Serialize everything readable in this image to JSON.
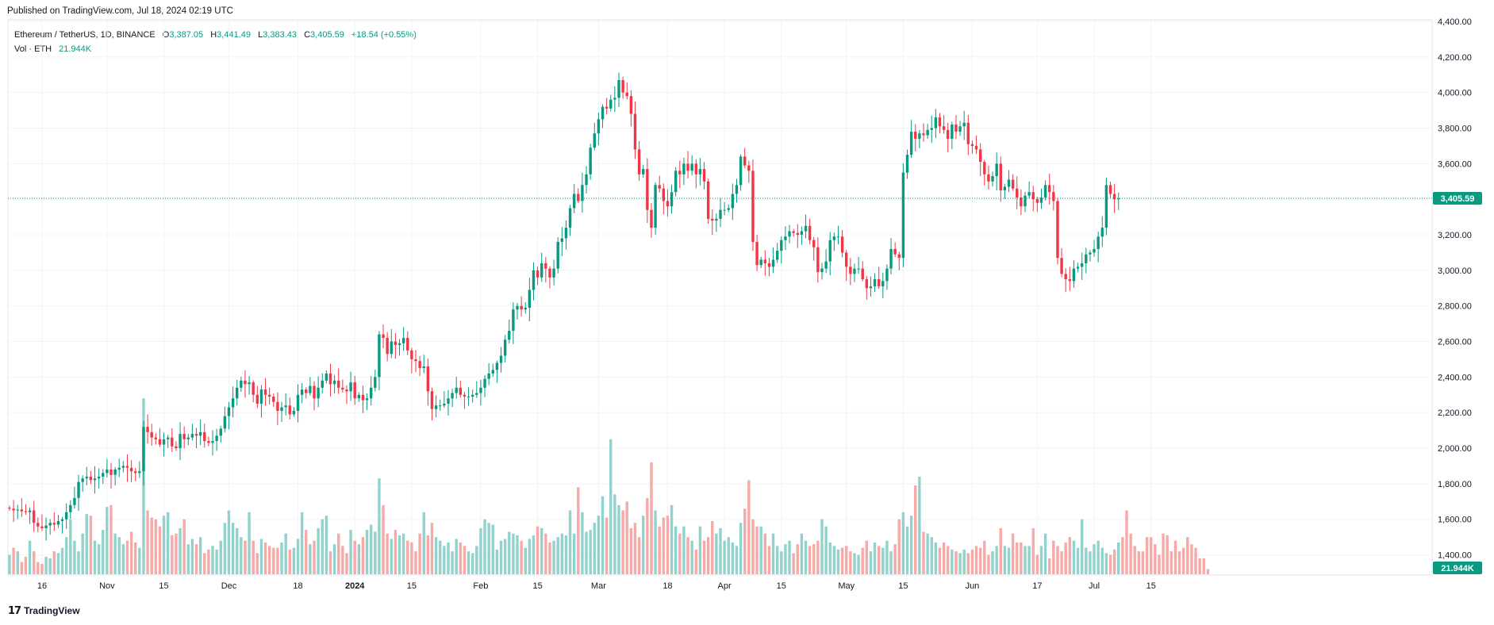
{
  "header": {
    "published": "Published on TradingView.com, Jul 18, 2024 02:19 UTC"
  },
  "legend": {
    "symbol": "Ethereum / TetherUS, 1D, BINANCE",
    "open_label": "O",
    "open": "3,387.05",
    "high_label": "H",
    "high": "3,441.49",
    "low_label": "L",
    "low": "3,383.43",
    "close_label": "C",
    "close": "3,405.59",
    "change": "+18.54 (+0.55%)",
    "vol_label": "Vol · ETH",
    "vol_value": "21.944K"
  },
  "footer": {
    "brand": "TradingView"
  },
  "colors": {
    "up": "#089981",
    "down": "#f23645",
    "up_vol": "#92d2cc",
    "down_vol": "#f7a9a7",
    "grid": "#f0f3fa",
    "price_tag": "#089981"
  },
  "chart_data": {
    "type": "candlestick",
    "title": "Ethereum / TetherUS, 1D, BINANCE",
    "ylim": [
      1300,
      4400
    ],
    "y_ticks": [
      "4,400.00",
      "4,200.00",
      "4,000.00",
      "3,800.00",
      "3,600.00",
      "3,400.00",
      "3,200.00",
      "3,000.00",
      "2,800.00",
      "2,600.00",
      "2,400.00",
      "2,200.00",
      "2,000.00",
      "1,800.00",
      "1,600.00",
      "1,400.00"
    ],
    "y_tick_values": [
      4400,
      4200,
      4000,
      3800,
      3600,
      3400,
      3200,
      3000,
      2800,
      2600,
      2400,
      2200,
      2000,
      1800,
      1600,
      1400
    ],
    "x_ticks": [
      {
        "label": "16",
        "idx": 8
      },
      {
        "label": "Nov",
        "idx": 24
      },
      {
        "label": "15",
        "idx": 38
      },
      {
        "label": "Dec",
        "idx": 54
      },
      {
        "label": "18",
        "idx": 71
      },
      {
        "label": "2024",
        "idx": 85,
        "bold": true
      },
      {
        "label": "15",
        "idx": 99
      },
      {
        "label": "Feb",
        "idx": 116
      },
      {
        "label": "15",
        "idx": 130
      },
      {
        "label": "Mar",
        "idx": 145
      },
      {
        "label": "18",
        "idx": 162
      },
      {
        "label": "Apr",
        "idx": 176
      },
      {
        "label": "15",
        "idx": 190
      },
      {
        "label": "May",
        "idx": 206
      },
      {
        "label": "15",
        "idx": 220
      },
      {
        "label": "Jun",
        "idx": 237
      },
      {
        "label": "17",
        "idx": 253
      },
      {
        "label": "Jul",
        "idx": 267
      },
      {
        "label": "15",
        "idx": 281
      }
    ],
    "last_price": 3405.59,
    "last_price_label": "3,405.59",
    "volume_label": "21.944K",
    "closes": [
      1660,
      1650,
      1655,
      1645,
      1640,
      1650,
      1580,
      1560,
      1550,
      1565,
      1580,
      1570,
      1590,
      1600,
      1640,
      1680,
      1720,
      1810,
      1830,
      1840,
      1820,
      1830,
      1840,
      1860,
      1880,
      1850,
      1880,
      1890,
      1900,
      1890,
      1870,
      1860,
      1870,
      2120,
      2090,
      2060,
      2050,
      2020,
      2050,
      2060,
      2010,
      2000,
      2080,
      2050,
      2060,
      2080,
      2070,
      2090,
      2040,
      2030,
      2040,
      2070,
      2110,
      2180,
      2230,
      2280,
      2340,
      2380,
      2360,
      2370,
      2300,
      2250,
      2330,
      2300,
      2290,
      2260,
      2210,
      2230,
      2240,
      2190,
      2210,
      2300,
      2330,
      2310,
      2350,
      2280,
      2340,
      2380,
      2420,
      2360,
      2380,
      2340,
      2330,
      2320,
      2370,
      2280,
      2300,
      2270,
      2280,
      2340,
      2400,
      2640,
      2620,
      2530,
      2600,
      2580,
      2590,
      2620,
      2550,
      2500,
      2490,
      2450,
      2460,
      2320,
      2220,
      2240,
      2240,
      2250,
      2280,
      2310,
      2340,
      2300,
      2290,
      2290,
      2300,
      2310,
      2340,
      2390,
      2420,
      2440,
      2480,
      2520,
      2610,
      2660,
      2780,
      2800,
      2780,
      2790,
      2890,
      3000,
      2960,
      3040,
      3010,
      2960,
      3010,
      3160,
      3180,
      3240,
      3350,
      3430,
      3390,
      3480,
      3540,
      3690,
      3770,
      3850,
      3920,
      3910,
      3960,
      3970,
      4070,
      4000,
      3980,
      3880,
      3680,
      3540,
      3570,
      3340,
      3240,
      3480,
      3460,
      3390,
      3360,
      3440,
      3560,
      3540,
      3600,
      3560,
      3600,
      3540,
      3570,
      3500,
      3290,
      3280,
      3290,
      3340,
      3340,
      3350,
      3430,
      3480,
      3640,
      3590,
      3560,
      3160,
      3030,
      3060,
      3040,
      3020,
      3060,
      3110,
      3170,
      3190,
      3220,
      3210,
      3200,
      3220,
      3250,
      3170,
      3130,
      2990,
      3010,
      3050,
      3170,
      3190,
      3190,
      3100,
      3020,
      2980,
      3010,
      3010,
      2950,
      2900,
      2910,
      2950,
      2910,
      2940,
      3010,
      3120,
      3090,
      3070,
      3550,
      3650,
      3780,
      3740,
      3770,
      3760,
      3790,
      3800,
      3860,
      3810,
      3790,
      3740,
      3820,
      3780,
      3810,
      3830,
      3710,
      3700,
      3680,
      3610,
      3540,
      3500,
      3530,
      3600,
      3450,
      3470,
      3510,
      3460,
      3410,
      3360,
      3420,
      3440,
      3400,
      3380,
      3410,
      3480,
      3440,
      3390,
      3070,
      2980,
      2950,
      2940,
      3010,
      3020,
      3040,
      3090,
      3100,
      3120,
      3190,
      3240,
      3480,
      3430,
      3400,
      3405
    ],
    "volumes": [
      1400,
      1440,
      1420,
      1360,
      1390,
      1480,
      1420,
      1360,
      1350,
      1390,
      1380,
      1420,
      1410,
      1440,
      1500,
      1600,
      1480,
      1420,
      1520,
      1630,
      1620,
      1480,
      1460,
      1540,
      1670,
      1680,
      1520,
      1500,
      1460,
      1480,
      1530,
      1470,
      1440,
      2280,
      1650,
      1610,
      1600,
      1560,
      1620,
      1640,
      1510,
      1520,
      1550,
      1600,
      1460,
      1490,
      1460,
      1500,
      1410,
      1430,
      1450,
      1430,
      1480,
      1580,
      1650,
      1580,
      1550,
      1500,
      1480,
      1640,
      1480,
      1410,
      1490,
      1470,
      1450,
      1440,
      1440,
      1470,
      1520,
      1430,
      1440,
      1490,
      1640,
      1540,
      1460,
      1480,
      1550,
      1600,
      1620,
      1420,
      1460,
      1520,
      1450,
      1410,
      1540,
      1480,
      1460,
      1500,
      1540,
      1570,
      1530,
      1830,
      1680,
      1520,
      1490,
      1540,
      1510,
      1520,
      1480,
      1470,
      1420,
      1520,
      1640,
      1510,
      1580,
      1500,
      1480,
      1450,
      1470,
      1420,
      1490,
      1470,
      1450,
      1420,
      1410,
      1450,
      1550,
      1600,
      1580,
      1570,
      1430,
      1480,
      1490,
      1530,
      1520,
      1510,
      1480,
      1440,
      1490,
      1510,
      1560,
      1550,
      1520,
      1470,
      1480,
      1500,
      1520,
      1510,
      1650,
      1520,
      1780,
      1640,
      1530,
      1540,
      1580,
      1620,
      1730,
      1610,
      2050,
      1740,
      1680,
      1650,
      1700,
      1550,
      1580,
      1500,
      1620,
      1720,
      1920,
      1650,
      1560,
      1610,
      1620,
      1680,
      1560,
      1520,
      1560,
      1500,
      1480,
      1430,
      1560,
      1480,
      1500,
      1590,
      1520,
      1550,
      1480,
      1500,
      1470,
      1450,
      1580,
      1660,
      1820,
      1600,
      1560,
      1560,
      1520,
      1450,
      1520,
      1450,
      1420,
      1460,
      1480,
      1410,
      1460,
      1520,
      1480,
      1450,
      1460,
      1480,
      1600,
      1560,
      1470,
      1450,
      1430,
      1440,
      1450,
      1420,
      1410,
      1400,
      1440,
      1480,
      1420,
      1470,
      1450,
      1440,
      1480,
      1420,
      1460,
      1600,
      1640,
      1560,
      1620,
      1790,
      1840,
      1530,
      1520,
      1500,
      1470,
      1440,
      1470,
      1450,
      1430,
      1420,
      1410,
      1430,
      1410,
      1430,
      1450,
      1440,
      1480,
      1400,
      1420,
      1450,
      1550,
      1450,
      1440,
      1520,
      1470,
      1470,
      1450,
      1450,
      1550,
      1400,
      1450,
      1520,
      1380,
      1480,
      1450,
      1420,
      1470,
      1500,
      1480,
      1440,
      1600,
      1440,
      1420,
      1460,
      1480,
      1440,
      1410,
      1400,
      1430,
      1470,
      1500,
      1650,
      1520,
      1450,
      1420,
      1420,
      1500,
      1500,
      1460,
      1400,
      1520,
      1510,
      1420,
      1480,
      1420,
      1440,
      1500,
      1460,
      1440,
      1380,
      1380,
      1320
    ]
  }
}
